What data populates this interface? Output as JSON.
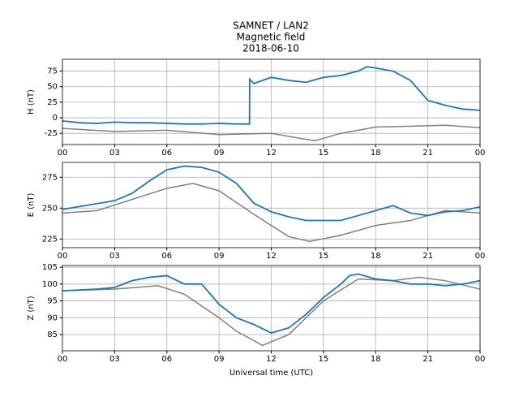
{
  "chart_data": [
    {
      "type": "line",
      "title": [
        "SAMNET / LAN2",
        "Magnetic field",
        "2018-06-10"
      ],
      "ylabel": "H (nT)",
      "xlim": [
        0,
        24
      ],
      "xticks": [
        {
          "value": 0,
          "label": "00"
        },
        {
          "value": 3,
          "label": "03"
        },
        {
          "value": 6,
          "label": "06"
        },
        {
          "value": 9,
          "label": "09"
        },
        12,
        15,
        18,
        21,
        {
          "value": 24,
          "label": "00"
        }
      ],
      "ylim": [
        -43,
        94
      ],
      "yticks": [
        -25,
        0,
        25,
        50,
        75
      ],
      "grid": true,
      "series": [
        {
          "color": "#1f77b4",
          "x": [
            0,
            1,
            2,
            3,
            4,
            5,
            6,
            7,
            8,
            9,
            10,
            10.75,
            10.76,
            11,
            12,
            13,
            14,
            15,
            16,
            17,
            17.5,
            18,
            19,
            20,
            21,
            22,
            23,
            24
          ],
          "values": [
            -5,
            -8,
            -9,
            -7,
            -8,
            -8,
            -9,
            -10,
            -10,
            -9,
            -10,
            -10,
            62,
            55,
            65,
            60,
            57,
            65,
            68,
            75,
            82,
            80,
            75,
            60,
            28,
            20,
            14,
            12
          ]
        },
        {
          "color": "#808080",
          "x": [
            0,
            3,
            6,
            9,
            12,
            14.5,
            16,
            18,
            22,
            24
          ],
          "values": [
            -17,
            -22,
            -20,
            -27,
            -25,
            -37,
            -25,
            -15,
            -12,
            -16
          ]
        }
      ]
    },
    {
      "type": "line",
      "ylabel": "E (nT)",
      "xlim": [
        0,
        24
      ],
      "xticks": [
        {
          "value": 0,
          "label": "00"
        },
        {
          "value": 3,
          "label": "03"
        },
        {
          "value": 6,
          "label": "06"
        },
        {
          "value": 9,
          "label": "09"
        },
        12,
        15,
        18,
        21,
        {
          "value": 24,
          "label": "00"
        }
      ],
      "ylim": [
        218,
        287
      ],
      "yticks": [
        225,
        250,
        275
      ],
      "grid": true,
      "series": [
        {
          "color": "#1f77b4",
          "x": [
            0,
            3,
            4,
            5,
            6,
            7,
            8,
            9,
            10,
            11,
            12,
            13,
            14,
            15,
            16,
            17,
            18,
            19,
            20,
            21,
            22,
            23,
            24
          ],
          "values": [
            249,
            256,
            262,
            272,
            281,
            284,
            283,
            279,
            270,
            254,
            247,
            243,
            240,
            240,
            240,
            244,
            248,
            252,
            246,
            244,
            247,
            248,
            251
          ]
        },
        {
          "color": "#808080",
          "x": [
            0,
            2,
            4,
            6,
            7.5,
            9,
            11,
            13,
            14.2,
            16,
            18,
            20,
            22,
            24
          ],
          "values": [
            246,
            248,
            257,
            266,
            270,
            264,
            245,
            227,
            223,
            228,
            236,
            240,
            248,
            246
          ]
        }
      ]
    },
    {
      "type": "line",
      "ylabel": "Z (nT)",
      "xlabel": "Universal time (UTC)",
      "xlim": [
        0,
        24
      ],
      "xticks": [
        {
          "value": 0,
          "label": "00"
        },
        {
          "value": 3,
          "label": "03"
        },
        {
          "value": 6,
          "label": "06"
        },
        {
          "value": 9,
          "label": "09"
        },
        12,
        15,
        18,
        21,
        {
          "value": 24,
          "label": "00"
        }
      ],
      "ylim": [
        80.2,
        105.5
      ],
      "yticks": [
        85,
        90,
        95,
        100,
        105
      ],
      "grid": true,
      "series": [
        {
          "color": "#1f77b4",
          "x": [
            0,
            2,
            3,
            4,
            5,
            6,
            7,
            8,
            9,
            10,
            11,
            12,
            13,
            14,
            15,
            16,
            16.5,
            17,
            18,
            19,
            20,
            21,
            22,
            23,
            24
          ],
          "values": [
            98,
            98.5,
            99,
            101,
            102,
            102.5,
            100,
            100,
            94,
            90,
            88,
            85.5,
            87,
            91,
            96,
            100,
            102.5,
            103,
            101.5,
            101,
            100,
            100,
            99.5,
            100,
            101
          ]
        },
        {
          "color": "#808080",
          "x": [
            0,
            3,
            5.5,
            7,
            9,
            10,
            11.5,
            13,
            15,
            17,
            19,
            20.5,
            22,
            24
          ],
          "values": [
            98,
            98.5,
            99.5,
            97,
            90,
            86,
            81.8,
            85,
            95,
            101.5,
            101,
            102,
            101,
            98.5
          ]
        }
      ]
    }
  ]
}
